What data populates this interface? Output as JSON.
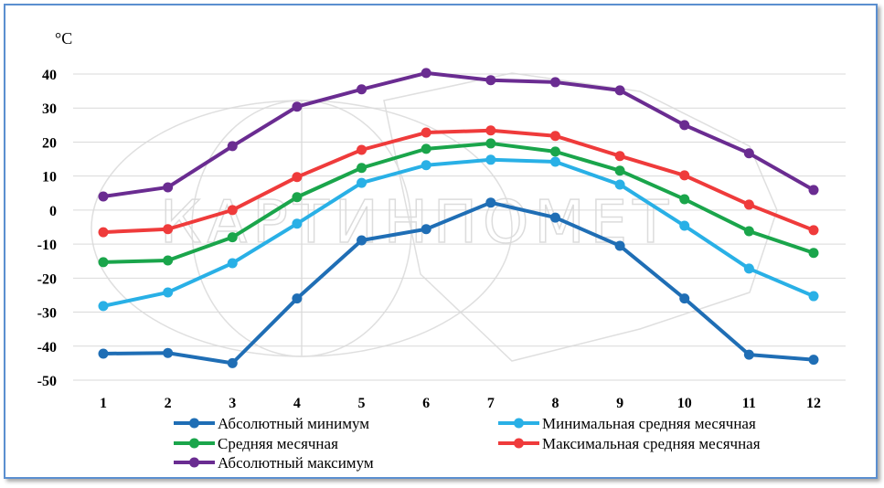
{
  "chart_data": {
    "type": "line",
    "title": "",
    "xlabel": "",
    "ylabel": "°C",
    "categories": [
      "1",
      "2",
      "3",
      "4",
      "5",
      "6",
      "7",
      "8",
      "9",
      "10",
      "11",
      "12"
    ],
    "ylim": [
      -50,
      40
    ],
    "yticks": [
      40,
      30,
      20,
      10,
      0,
      -10,
      -20,
      -30,
      -40,
      -50
    ],
    "grid": "horizontal",
    "legend_position": "bottom",
    "watermark": "КАРТИНПОМЕТ",
    "series": [
      {
        "name": "Абсолютный минимум",
        "color": "#1f6eb5",
        "values": [
          -42.2,
          -42,
          -45,
          -26,
          -8.9,
          -5.6,
          2.2,
          -2.2,
          -10.5,
          -26,
          -42.5,
          -44
        ]
      },
      {
        "name": "Минимальная средняя месячная",
        "color": "#29b0e6",
        "values": [
          -28.2,
          -24.2,
          -15.6,
          -4,
          8,
          13.2,
          14.8,
          14.2,
          7.5,
          -4.6,
          -17.2,
          -25.3
        ]
      },
      {
        "name": "Средняя месячная",
        "color": "#1aa54b",
        "values": [
          -15.3,
          -14.8,
          -8,
          3.8,
          12.4,
          18,
          19.6,
          17.2,
          11.6,
          3.2,
          -6.2,
          -12.6
        ]
      },
      {
        "name": "Максимальная средняя месячная",
        "color": "#ef3b3b",
        "values": [
          -6.5,
          -5.6,
          0,
          9.7,
          17.7,
          22.8,
          23.4,
          21.8,
          15.9,
          10.2,
          1.6,
          -5.9
        ]
      },
      {
        "name": "Абсолютный максимум",
        "color": "#6a2c91",
        "values": [
          4,
          6.7,
          18.8,
          30.4,
          35.5,
          40.3,
          38.2,
          37.6,
          35.2,
          25,
          16.7,
          5.9
        ]
      }
    ]
  }
}
